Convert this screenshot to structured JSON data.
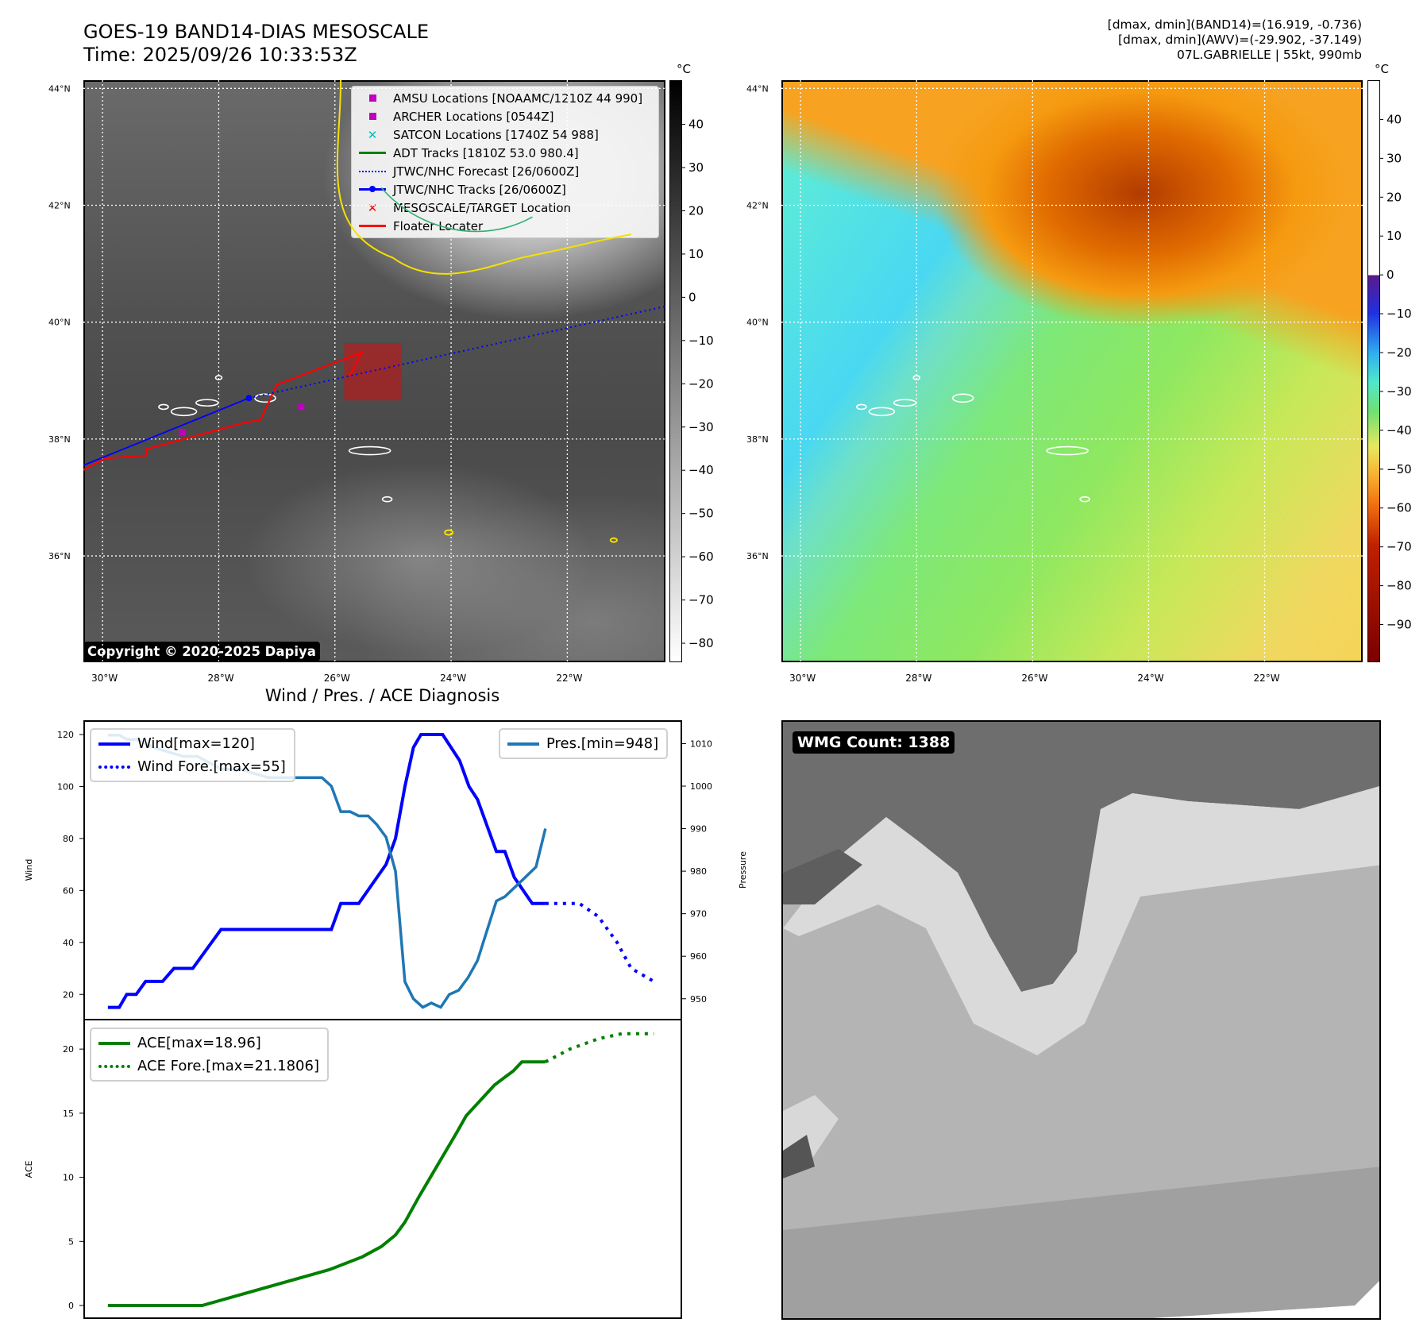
{
  "header": {
    "title": "GOES-19 BAND14-DIAS MESOSCALE",
    "time": "Time: 2025/09/26 10:33:53Z",
    "info_lines": [
      "[dmax, dmin](BAND14)=(16.919, -0.736)",
      "[dmax, dmin](AWV)=(-29.902, -37.149)",
      "07L.GABRIELLE | 55kt, 990mb"
    ]
  },
  "maps": {
    "lat_labels": [
      "44°N",
      "42°N",
      "40°N",
      "38°N",
      "36°N"
    ],
    "lon_labels": [
      "30°W",
      "28°W",
      "26°W",
      "24°W",
      "22°W"
    ],
    "lats": [
      44,
      42,
      40,
      38,
      36
    ],
    "lons": [
      -30,
      -28,
      -26,
      -24,
      -22
    ],
    "extent": {
      "lon": [
        -30.33,
        -20.31
      ],
      "lat": [
        34.18,
        44.14
      ]
    },
    "copyright": "Copyright © 2020-2025 Dapiya",
    "legend": [
      {
        "label": "AMSU Locations [NOAAMC/1210Z 44 990]",
        "icon": "square-marker",
        "color": "#c000c0"
      },
      {
        "label": "ARCHER Locations [0544Z]",
        "icon": "square-marker",
        "color": "#c000c0"
      },
      {
        "label": "SATCON Locations [1740Z 54 988]",
        "icon": "x-marker",
        "color": "#00c0c0"
      },
      {
        "label": "ADT Tracks [1810Z 53.0 980.4]",
        "icon": "solid-line",
        "color": "#008000"
      },
      {
        "label": "JTWC/NHC Forecast [26/0600Z]",
        "icon": "dotted-line",
        "color": "#0000ff"
      },
      {
        "label": "JTWC/NHC Tracks [26/0600Z]",
        "icon": "line-dot",
        "color": "#0000ff"
      },
      {
        "label": "MESOSCALE/TARGET Location",
        "icon": "x-marker",
        "color": "#ff0000"
      },
      {
        "label": "Floater Locater",
        "icon": "solid-line",
        "color": "#ff0000"
      }
    ],
    "jtwc_track": [
      [
        -30.33,
        37.55
      ],
      [
        -27.48,
        38.7
      ]
    ],
    "jtwc_forecast": [
      [
        -27.48,
        38.7
      ],
      [
        -20.31,
        40.27
      ]
    ],
    "floater": [
      [
        -30.33,
        37.47
      ],
      [
        -29.95,
        37.67
      ],
      [
        -29.24,
        37.72
      ],
      [
        -29.24,
        37.83
      ],
      [
        -27.59,
        38.27
      ],
      [
        -27.28,
        38.33
      ],
      [
        -27.0,
        38.93
      ],
      [
        -25.54,
        39.48
      ],
      [
        -25.74,
        39.09
      ],
      [
        -25.54,
        39.48
      ]
    ],
    "target_box": {
      "lon": [
        -25.84,
        -24.85
      ],
      "lat": [
        38.66,
        39.64
      ]
    },
    "amsu": [
      -26.58,
      38.55
    ],
    "archer": [
      -28.63,
      38.12
    ],
    "cbar_unit": "°C",
    "cbar1_ticks": [
      40,
      30,
      20,
      10,
      0,
      -10,
      -20,
      -30,
      -40,
      -50,
      -60,
      -70,
      -80
    ],
    "cbar1_range": [
      -84.4,
      50.2
    ],
    "cbar2_ticks": [
      40,
      30,
      20,
      10,
      0,
      -10,
      -20,
      -30,
      -40,
      -50,
      -60,
      -70,
      -80,
      -90
    ],
    "cbar2_range": [
      -99.7,
      50.1
    ]
  },
  "wmg": {
    "label": "WMG Count: 1388"
  },
  "chart_data": [
    {
      "type": "line",
      "title": "Wind / Pres. / ACE Diagnosis",
      "ylabel": "Wind",
      "ylabel_right": "Pressure",
      "xlim": [
        -2.6,
        60.9
      ],
      "ylim": [
        10.3,
        125.5
      ],
      "ylim_right": [
        945.1,
        1015.5
      ],
      "yticks": [
        20,
        40,
        60,
        80,
        100,
        120
      ],
      "yticks_right": [
        950,
        960,
        970,
        980,
        990,
        1000,
        1010
      ],
      "legend_left": [
        "Wind[max=120]",
        "Wind Fore.[max=55]"
      ],
      "legend_right": [
        "Pres.[min=948]"
      ],
      "series": [
        {
          "name": "Wind[max=120]",
          "axis": "left",
          "color": "#0000ff",
          "style": "solid",
          "points": [
            [
              0,
              15
            ],
            [
              1.2,
              15
            ],
            [
              2,
              20
            ],
            [
              3,
              20
            ],
            [
              4,
              25
            ],
            [
              5.8,
              25
            ],
            [
              7,
              30
            ],
            [
              9,
              30
            ],
            [
              12,
              45
            ],
            [
              23.7,
              45
            ],
            [
              24.7,
              55
            ],
            [
              26.6,
              55
            ],
            [
              29.5,
              70
            ],
            [
              30.5,
              80
            ],
            [
              31.5,
              100
            ],
            [
              32.4,
              115
            ],
            [
              33.2,
              120
            ],
            [
              35.5,
              120
            ],
            [
              37.3,
              110
            ],
            [
              38.3,
              100
            ],
            [
              39.2,
              95
            ],
            [
              41.2,
              75
            ],
            [
              42.1,
              75
            ],
            [
              43.1,
              65
            ],
            [
              45,
              55
            ],
            [
              46.4,
              55
            ]
          ]
        },
        {
          "name": "Wind Fore.[max=55]",
          "axis": "left",
          "color": "#0000ff",
          "style": "dotted",
          "points": [
            [
              46.4,
              55
            ],
            [
              50,
              55
            ],
            [
              52,
              50
            ],
            [
              54,
              40
            ],
            [
              55.5,
              30
            ],
            [
              57.9,
              25
            ]
          ]
        },
        {
          "name": "Pres.[min=948]",
          "axis": "right",
          "color": "#1f77b4",
          "style": "solid",
          "points": [
            [
              0,
              1012
            ],
            [
              1.2,
              1012
            ],
            [
              2,
              1011
            ],
            [
              3,
              1011
            ],
            [
              5,
              1009
            ],
            [
              8,
              1007
            ],
            [
              9.5,
              1007
            ],
            [
              12,
              1004
            ],
            [
              14,
              1004
            ],
            [
              17,
              1002
            ],
            [
              22.7,
              1002
            ],
            [
              23.7,
              1000
            ],
            [
              24.7,
              994
            ],
            [
              25.7,
              994
            ],
            [
              26.6,
              993
            ],
            [
              27.6,
              993
            ],
            [
              28.5,
              991
            ],
            [
              29.5,
              988
            ],
            [
              30.5,
              980
            ],
            [
              31.5,
              954
            ],
            [
              32.4,
              950
            ],
            [
              33.4,
              948
            ],
            [
              34.3,
              949
            ],
            [
              35.3,
              948
            ],
            [
              36.2,
              951
            ],
            [
              37.2,
              952
            ],
            [
              38.2,
              955
            ],
            [
              39.2,
              959
            ],
            [
              40.2,
              966
            ],
            [
              41.2,
              973
            ],
            [
              42.1,
              974
            ],
            [
              44,
              978
            ],
            [
              45.4,
              981
            ],
            [
              46.4,
              990
            ]
          ]
        }
      ]
    },
    {
      "type": "line",
      "ylabel": "ACE",
      "xlim": [
        -2.6,
        60.9
      ],
      "ylim": [
        -1.05,
        22.3
      ],
      "yticks": [
        0,
        5,
        10,
        15,
        20
      ],
      "legend_left": [
        "ACE[max=18.96]",
        "ACE Fore.[max=21.1806]"
      ],
      "series": [
        {
          "name": "ACE[max=18.96]",
          "color": "#008000",
          "style": "solid",
          "points": [
            [
              0,
              0
            ],
            [
              10,
              0
            ],
            [
              23.5,
              2.8
            ],
            [
              27,
              3.8
            ],
            [
              29,
              4.6
            ],
            [
              30.5,
              5.5
            ],
            [
              31.5,
              6.5
            ],
            [
              33,
              8.5
            ],
            [
              35,
              11
            ],
            [
              37,
              13.5
            ],
            [
              38,
              14.8
            ],
            [
              39.5,
              16
            ],
            [
              41,
              17.2
            ],
            [
              43,
              18.3
            ],
            [
              43.9,
              19
            ],
            [
              46.4,
              19
            ]
          ]
        },
        {
          "name": "ACE Fore.[max=21.1806]",
          "color": "#008000",
          "style": "dotted",
          "points": [
            [
              46.4,
              19
            ],
            [
              49,
              20
            ],
            [
              52,
              20.8
            ],
            [
              54.5,
              21.2
            ],
            [
              57.9,
              21.2
            ]
          ]
        }
      ]
    }
  ]
}
